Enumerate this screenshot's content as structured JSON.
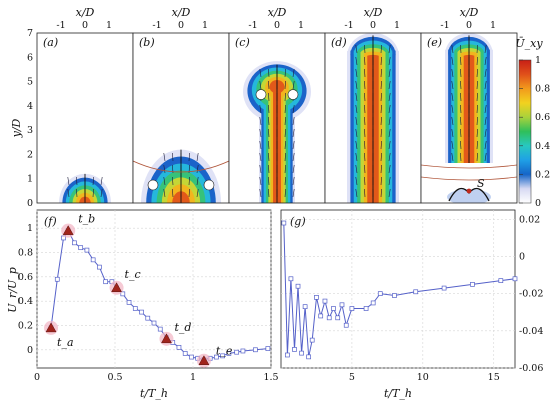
{
  "colors": {
    "line": "#5561c9",
    "marker_fill": "#a0241c",
    "marker_halo": "#f2b3c3",
    "axis": "#222222"
  },
  "colorbar": {
    "label": "Ū_xy",
    "ticks": [
      "0",
      "0.2",
      "0.4",
      "0.6",
      "0.8",
      "1"
    ]
  },
  "top_panels": {
    "x_axis_label": "x/D",
    "y_axis_label": "y/D",
    "x_ticks": [
      "-1",
      "0",
      "1"
    ],
    "y_ticks": [
      "0",
      "1",
      "2",
      "3",
      "4",
      "5",
      "6",
      "7"
    ],
    "panels": [
      {
        "label": "(a)",
        "extent": 1.2
      },
      {
        "label": "(b)",
        "extent": 2.2
      },
      {
        "label": "(c)",
        "extent": 5.7
      },
      {
        "label": "(d)",
        "extent": 6.9
      },
      {
        "label": "(e)",
        "extent": 6.9,
        "separation_label": "S"
      }
    ]
  },
  "chart_data": [
    {
      "type": "line",
      "panel_label": "(f)",
      "xlabel": "t/T_h",
      "ylabel": "U_r/U_p",
      "xlim": [
        0,
        1.5
      ],
      "ylim": [
        -0.15,
        1.15
      ],
      "x_ticks": [
        "0",
        "0.5",
        "1",
        "1.5"
      ],
      "y_ticks": [
        "0",
        "0.2",
        "0.4",
        "0.6",
        "0.8",
        "1"
      ],
      "grid": true,
      "series": [
        {
          "x": [
            0.09,
            0.13,
            0.17,
            0.2,
            0.24,
            0.28,
            0.32,
            0.36,
            0.4,
            0.44,
            0.48,
            0.51,
            0.55,
            0.59,
            0.63,
            0.67,
            0.71,
            0.75,
            0.79,
            0.83,
            0.87,
            0.91,
            0.95,
            0.99,
            1.03,
            1.07,
            1.11,
            1.15,
            1.19,
            1.23,
            1.28,
            1.32,
            1.4,
            1.48
          ],
          "y": [
            0.18,
            0.58,
            0.92,
            0.98,
            0.88,
            0.84,
            0.82,
            0.74,
            0.68,
            0.56,
            0.56,
            0.51,
            0.46,
            0.39,
            0.34,
            0.31,
            0.26,
            0.22,
            0.17,
            0.1,
            0.06,
            0.02,
            -0.03,
            -0.06,
            -0.07,
            -0.08,
            -0.07,
            -0.06,
            -0.05,
            -0.03,
            -0.02,
            -0.01,
            0.0,
            0.01
          ]
        }
      ],
      "highlights": [
        {
          "label": "t_a",
          "x": 0.09,
          "y": 0.18
        },
        {
          "label": "t_b",
          "x": 0.2,
          "y": 0.98
        },
        {
          "label": "t_c",
          "x": 0.51,
          "y": 0.51
        },
        {
          "label": "t_d",
          "x": 0.83,
          "y": 0.09
        },
        {
          "label": "t_e",
          "x": 1.07,
          "y": -0.09
        }
      ]
    },
    {
      "type": "line",
      "panel_label": "(g)",
      "xlabel": "t/T_h",
      "xlim": [
        0,
        16.5
      ],
      "ylim": [
        -0.06,
        0.025
      ],
      "y_axis_side": "right",
      "x_ticks": [
        "5",
        "10",
        "15"
      ],
      "y_ticks": [
        "-0.06",
        "-0.04",
        "-0.02",
        "0",
        "0.02"
      ],
      "grid": true,
      "series": [
        {
          "x": [
            0.2,
            0.45,
            0.7,
            0.95,
            1.2,
            1.45,
            1.7,
            1.95,
            2.2,
            2.5,
            2.8,
            3.1,
            3.4,
            3.7,
            4.0,
            4.3,
            4.6,
            5.0,
            6.0,
            6.5,
            7.0,
            8.0,
            9.5,
            11.5,
            13.5,
            15.5,
            16.5
          ],
          "y": [
            0.018,
            -0.053,
            -0.012,
            -0.05,
            -0.016,
            -0.052,
            -0.027,
            -0.054,
            -0.045,
            -0.022,
            -0.032,
            -0.024,
            -0.033,
            -0.028,
            -0.033,
            -0.026,
            -0.037,
            -0.028,
            -0.028,
            -0.025,
            -0.02,
            -0.021,
            -0.019,
            -0.017,
            -0.015,
            -0.013,
            -0.012
          ]
        }
      ]
    }
  ]
}
